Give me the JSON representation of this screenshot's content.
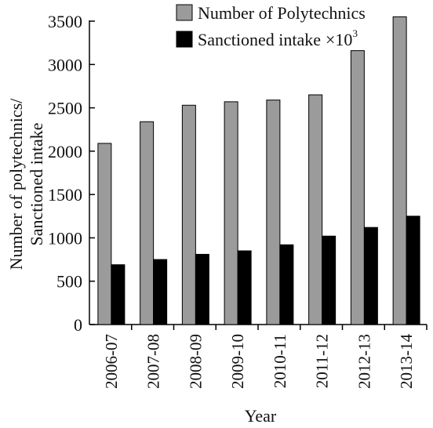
{
  "chart_data": {
    "type": "bar",
    "xlabel": "Year",
    "ylabel_lines": [
      "Number of polytechnics/",
      "Sanctioned intake"
    ],
    "ylim": [
      0,
      3500
    ],
    "yticks": [
      0,
      500,
      1000,
      1500,
      2000,
      2500,
      3000,
      3500
    ],
    "categories": [
      "2006-07",
      "2007-08",
      "2008-09",
      "2009-10",
      "2010-11",
      "2011-12",
      "2012-13",
      "2013-14"
    ],
    "grid": false,
    "legend_position": "top-right",
    "series": [
      {
        "name": "Number of Polytechnics",
        "color": "#9b9b9b",
        "values": [
          2090,
          2340,
          2530,
          2570,
          2590,
          2650,
          3160,
          3550
        ]
      },
      {
        "name": "Sanctioned intake",
        "name_suffix": "×10",
        "name_superscript": "3",
        "color": "#000000",
        "values": [
          690,
          750,
          810,
          850,
          920,
          1020,
          1120,
          1250
        ]
      }
    ]
  }
}
